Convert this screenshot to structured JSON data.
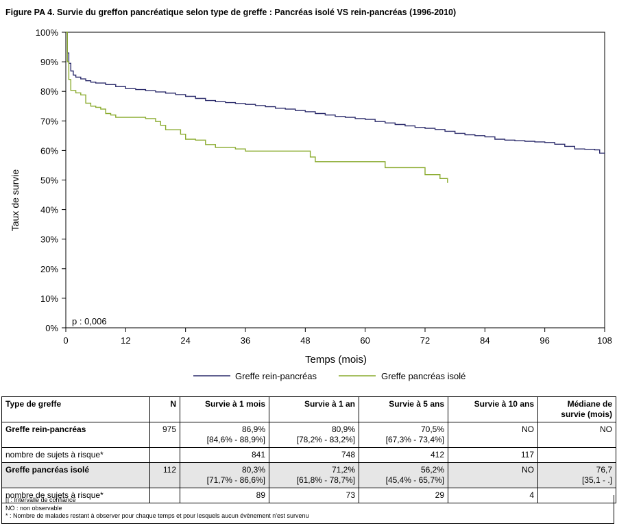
{
  "figure": {
    "title": "Figure PA 4. Survie du greffon pancréatique selon type de greffe : Pancréas isolé VS rein-pancréas (1996-2010)"
  },
  "chart_data": {
    "type": "line",
    "step": true,
    "xlabel": "Temps (mois)",
    "ylabel": "Taux de survie",
    "xlim": [
      0,
      108
    ],
    "ylim": [
      0,
      100
    ],
    "x_ticks": [
      0,
      12,
      24,
      36,
      48,
      60,
      72,
      84,
      96,
      108
    ],
    "x_tick_labels": [
      "0",
      "12",
      "24",
      "36",
      "48",
      "60",
      "72",
      "84",
      "96",
      "108"
    ],
    "y_ticks": [
      0,
      10,
      20,
      30,
      40,
      50,
      60,
      70,
      80,
      90,
      100
    ],
    "y_tick_labels": [
      "0%",
      "10%",
      "20%",
      "30%",
      "40%",
      "50%",
      "60%",
      "70%",
      "80%",
      "90%",
      "100%"
    ],
    "annotation": "p : 0,006",
    "legend_position": "bottom",
    "grid": false,
    "series": [
      {
        "name": "Greffe rein-pancréas",
        "color": "#2b2b6b",
        "x": [
          0,
          0.3,
          0.6,
          1,
          1.5,
          2,
          3,
          4,
          5,
          6,
          8,
          10,
          12,
          14,
          16,
          18,
          20,
          22,
          24,
          26,
          28,
          30,
          32,
          34,
          36,
          38,
          40,
          42,
          44,
          46,
          48,
          50,
          52,
          54,
          56,
          58,
          60,
          62,
          64,
          66,
          68,
          70,
          72,
          74,
          76,
          78,
          80,
          82,
          84,
          86,
          88,
          90,
          92,
          94,
          96,
          98,
          100,
          102,
          104,
          106,
          107,
          108
        ],
        "y": [
          100,
          93,
          89.5,
          86.9,
          85.5,
          84.8,
          84.2,
          83.6,
          83.1,
          82.8,
          82.3,
          81.6,
          80.9,
          80.6,
          80.2,
          79.8,
          79.4,
          78.9,
          78.3,
          77.6,
          76.9,
          76.5,
          76.2,
          75.9,
          75.6,
          75.2,
          74.8,
          74.3,
          74,
          73.5,
          73.1,
          72.5,
          72,
          71.5,
          71.2,
          70.8,
          70.5,
          69.8,
          69.3,
          68.8,
          68.3,
          67.8,
          67.5,
          67.1,
          66.5,
          65.8,
          65.3,
          65,
          64.6,
          63.8,
          63.5,
          63.3,
          63.1,
          62.9,
          62.7,
          62.1,
          61.4,
          60.5,
          60.4,
          60.2,
          59.1,
          59
        ]
      },
      {
        "name": "Greffe pancréas isolé",
        "color": "#8aab2e",
        "x": [
          0,
          0.3,
          0.6,
          1,
          2,
          3,
          4,
          5,
          6,
          7,
          8,
          9,
          10,
          12,
          14,
          16,
          18,
          19,
          20,
          22,
          23,
          24,
          26,
          28,
          30,
          32,
          34,
          36,
          38,
          40,
          42,
          44,
          46,
          48,
          49,
          50,
          52,
          54,
          56,
          58,
          60,
          62,
          63,
          64,
          66,
          68,
          70,
          72,
          74,
          75,
          76.5
        ],
        "y": [
          100,
          90,
          84,
          80.3,
          79.5,
          78.8,
          76,
          75,
          74.6,
          74,
          72.5,
          72,
          71.2,
          71.2,
          71.2,
          70.8,
          69.8,
          68.5,
          67,
          67,
          65.5,
          63.8,
          63.5,
          62,
          61,
          61,
          60.5,
          59.8,
          59.8,
          59.8,
          59.8,
          59.8,
          59.8,
          59.8,
          57.8,
          56.2,
          56.2,
          56.2,
          56.2,
          56.2,
          56.2,
          56.2,
          56.2,
          54.2,
          54.2,
          54.2,
          54.2,
          51.8,
          51.8,
          50.5,
          49
        ]
      }
    ]
  },
  "table": {
    "headers": [
      "Type de greffe",
      "N",
      "Survie à 1 mois",
      "Survie à 1 an",
      "Survie à 5 ans",
      "Survie à 10 ans",
      "Médiane de survie (mois)"
    ],
    "rows": [
      {
        "label": "Greffe rein-pancréas",
        "n": "975",
        "m1": "86,9%",
        "m1_ci": "[84,6% - 88,9%]",
        "y1": "80,9%",
        "y1_ci": "[78,2% - 83,2%]",
        "y5": "70,5%",
        "y5_ci": "[67,3% - 73,4%]",
        "y10": "NO",
        "median": "NO",
        "median_ci": ""
      },
      {
        "label": "nombre de sujets à risque*",
        "n": "",
        "m1": "841",
        "y1": "748",
        "y5": "412",
        "y10": "117",
        "median": ""
      },
      {
        "label": "Greffe pancréas isolé",
        "n": "112",
        "m1": "80,3%",
        "m1_ci": "[71,7% - 86,6%]",
        "y1": "71,2%",
        "y1_ci": "[61,8% - 78,7%]",
        "y5": "56,2%",
        "y5_ci": "[45,4% - 65,7%]",
        "y10": "NO",
        "median": "76,7",
        "median_ci": "[35,1 - .]"
      },
      {
        "label": "nombre de sujets à risque*",
        "n": "",
        "m1": "89",
        "y1": "73",
        "y5": "29",
        "y10": "4",
        "median": ""
      }
    ]
  },
  "notes": [
    "[] : Intervalle de confiance",
    "NO : non observable",
    "* : Nombre de malades restant à observer pour chaque temps et pour lesquels aucun évènement n'est survenu"
  ]
}
